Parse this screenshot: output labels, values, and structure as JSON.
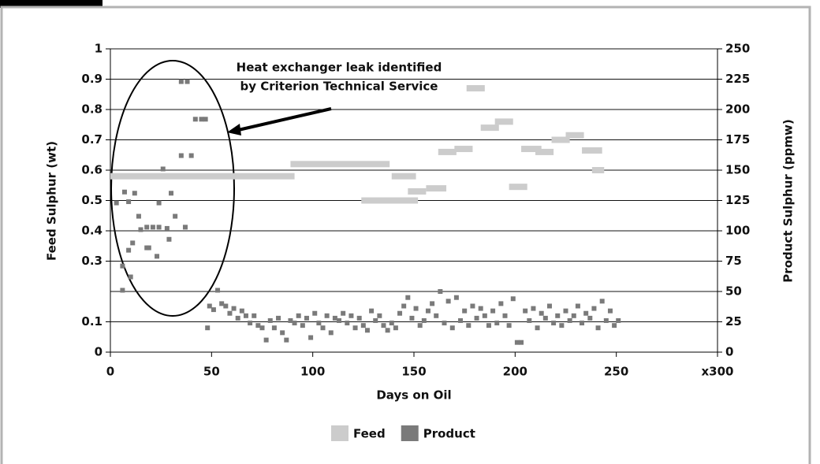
{
  "chart_data": {
    "type": "scatter",
    "annotation": [
      "Heat exchanger leak identified",
      "by Criterion Technical Service"
    ],
    "xlabel": "Days on Oil",
    "ylabel": "Feed Sulphur (wt)",
    "y2label": "Product Sulphur (ppmw)",
    "xlim": [
      0,
      300
    ],
    "xticks": [
      0,
      50,
      100,
      150,
      200,
      250,
      {
        "value": 300,
        "label": "x300"
      }
    ],
    "ylim": [
      0,
      1
    ],
    "yticks": [
      0,
      0.1,
      0.3,
      0.4,
      0.5,
      0.6,
      0.7,
      0.8,
      0.9,
      1
    ],
    "y2lim": [
      0,
      250
    ],
    "y2ticks": [
      0,
      25,
      50,
      75,
      100,
      125,
      150,
      175,
      200,
      225,
      250
    ],
    "grid": true,
    "legend": "bottom",
    "series": [
      {
        "name": "Feed",
        "color": "#cccccc",
        "axis": "y",
        "x": [
          0,
          89,
          124,
          139,
          147,
          156,
          162,
          170,
          176,
          183,
          190,
          197,
          203,
          210,
          218,
          225,
          233,
          238
        ],
        "x2": [
          91,
          138,
          152,
          151,
          156,
          166,
          171,
          179,
          185,
          192,
          199,
          206,
          213,
          219,
          227,
          234,
          243,
          244
        ],
        "values": [
          0.58,
          0.62,
          0.5,
          0.58,
          0.53,
          0.54,
          0.66,
          0.67,
          0.87,
          0.74,
          0.76,
          0.545,
          0.67,
          0.66,
          0.7,
          0.715,
          0.665,
          0.6
        ]
      },
      {
        "name": "Product",
        "color": "#7a7a7a",
        "axis": "y2",
        "x": [
          3,
          7,
          6,
          6,
          9,
          9,
          10,
          12,
          11,
          14,
          15,
          18,
          18,
          19,
          21,
          23,
          24,
          24,
          26,
          28,
          29,
          30,
          32,
          35,
          38,
          35,
          40,
          37,
          42,
          45,
          47,
          48,
          53,
          49,
          51,
          55,
          57,
          59,
          61,
          63,
          65,
          67,
          69,
          71,
          73,
          75,
          77,
          79,
          81,
          83,
          85,
          87,
          89,
          91,
          93,
          95,
          97,
          99,
          101,
          103,
          105,
          107,
          109,
          111,
          113,
          115,
          117,
          119,
          121,
          123,
          125,
          127,
          129,
          131,
          133,
          135,
          137,
          139,
          141,
          143,
          145,
          147,
          149,
          151,
          153,
          155,
          157,
          159,
          161,
          163,
          165,
          167,
          169,
          171,
          173,
          175,
          177,
          179,
          181,
          183,
          185,
          187,
          189,
          191,
          193,
          195,
          197,
          199,
          201,
          203,
          205,
          207,
          209,
          211,
          213,
          215,
          217,
          219,
          221,
          223,
          225,
          227,
          229,
          231,
          233,
          235,
          237,
          239,
          241,
          243,
          245,
          247,
          249,
          251
        ],
        "values": [
          123,
          132,
          71,
          51,
          124,
          84,
          62,
          131,
          90,
          112,
          101,
          103,
          86,
          86,
          103,
          79,
          123,
          103,
          151,
          102,
          93,
          131,
          112,
          223,
          223,
          162,
          162,
          103,
          192,
          192,
          192,
          20,
          51,
          38,
          35,
          40,
          38,
          32,
          36,
          28,
          34,
          30,
          24,
          30,
          22,
          20,
          10,
          26,
          20,
          28,
          16,
          10,
          26,
          24,
          30,
          22,
          28,
          12,
          32,
          24,
          20,
          30,
          16,
          28,
          26,
          32,
          24,
          30,
          20,
          28,
          22,
          18,
          34,
          26,
          30,
          22,
          18,
          24,
          20,
          32,
          38,
          45,
          28,
          36,
          22,
          26,
          34,
          40,
          30,
          50,
          24,
          42,
          20,
          45,
          26,
          34,
          22,
          38,
          28,
          36,
          30,
          22,
          34,
          24,
          40,
          30,
          22,
          44,
          8,
          8,
          34,
          26,
          36,
          20,
          32,
          28,
          38,
          24,
          30,
          22,
          34,
          26,
          30,
          38,
          24,
          32,
          28,
          36,
          20,
          42,
          26,
          34,
          22,
          26
        ]
      }
    ]
  }
}
